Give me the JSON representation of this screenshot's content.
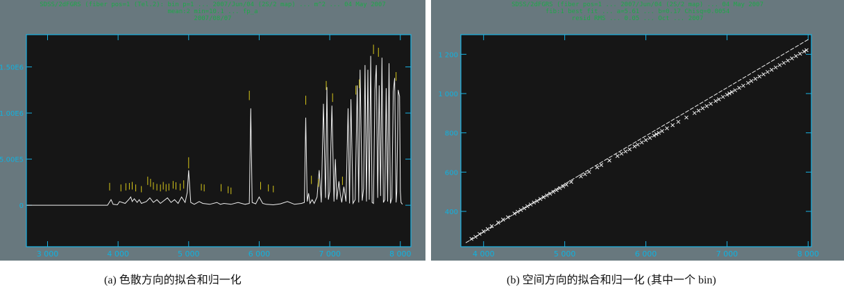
{
  "colors": {
    "frame_bg": "#68787e",
    "plot_bg": "#161616",
    "axis_cyan": "#19b4e6",
    "tick_label_cyan": "#0fb2e0",
    "header_green": "#1fa84a",
    "line_white": "#f2f2f2",
    "marker_yellow": "#d8c81a"
  },
  "panels": {
    "a": {
      "header": [
        "SDSS/2dFGRS (fiber pos=1 (Tel.2): bin p=1 ... 2007/Jun/04 (2S/2 map) ... m^2 ... 04 May 2007",
        "mean:2 min=10.1 ... fp_a",
        "2007/08/07"
      ],
      "caption": "(a) 色散方向的拟合和归一化"
    },
    "b": {
      "header": [
        "SDSS/2dFGRS (fiber pos=1 ... 2007/Jun/04 (2S/2 map) ... 04 May 2007",
        "fib:1 best fit ... a=5.61 ... b=0.17 Chisq=0.0054",
        "resid RMS ... 0.05 ... Oct ... 2007"
      ],
      "caption": "(b) 空间方向的拟合和归一化 (其中一个 bin)"
    }
  },
  "chart_data": [
    {
      "type": "line",
      "x": [
        2700,
        3850,
        3900,
        3930,
        3990,
        4020,
        4100,
        4150,
        4180,
        4200,
        4230,
        4270,
        4300,
        4330,
        4400,
        4450,
        4500,
        4550,
        4600,
        4650,
        4700,
        4750,
        4800,
        4850,
        4900,
        4950,
        4980,
        5000,
        5030,
        5080,
        5150,
        5200,
        5300,
        5400,
        5450,
        5500,
        5600,
        5700,
        5800,
        5860,
        5880,
        5900,
        5950,
        6000,
        6050,
        6100,
        6200,
        6300,
        6400,
        6500,
        6600,
        6640,
        6660,
        6680,
        6700,
        6720,
        6750,
        6780,
        6820,
        6850,
        6880,
        6910,
        6940,
        6960,
        6980,
        7000,
        7030,
        7060,
        7080,
        7100,
        7130,
        7150,
        7170,
        7200,
        7230,
        7260,
        7280,
        7300,
        7330,
        7360,
        7390,
        7410,
        7430,
        7460,
        7480,
        7500,
        7520,
        7540,
        7560,
        7580,
        7600,
        7620,
        7640,
        7660,
        7680,
        7700,
        7720,
        7740,
        7760,
        7780,
        7800,
        7820,
        7840,
        7860,
        7880,
        7900,
        7920,
        7940,
        7950,
        7970,
        7990,
        8000,
        8010,
        8030
      ],
      "values": [
        0,
        0,
        60000,
        10000,
        5000,
        40000,
        20000,
        60000,
        90000,
        40000,
        70000,
        30000,
        60000,
        20000,
        40000,
        80000,
        30000,
        60000,
        20000,
        50000,
        80000,
        30000,
        60000,
        20000,
        90000,
        30000,
        140000,
        380000,
        30000,
        10000,
        40000,
        20000,
        10000,
        30000,
        10000,
        20000,
        10000,
        30000,
        10000,
        20000,
        1050000,
        30000,
        15000,
        90000,
        20000,
        10000,
        5000,
        15000,
        40000,
        10000,
        20000,
        30000,
        950000,
        40000,
        130000,
        20000,
        60000,
        20000,
        90000,
        380000,
        30000,
        1100000,
        80000,
        1280000,
        60000,
        150000,
        1080000,
        40000,
        500000,
        60000,
        260000,
        120000,
        30000,
        200000,
        40000,
        1050000,
        20000,
        1150000,
        20000,
        60000,
        1300000,
        30000,
        1470000,
        50000,
        180000,
        1520000,
        40000,
        1470000,
        60000,
        1620000,
        30000,
        20000,
        1250000,
        1520000,
        80000,
        1300000,
        100000,
        1600000,
        30000,
        60000,
        1270000,
        40000,
        1540000,
        20000,
        80000,
        1230000,
        1380000,
        30000,
        150000,
        1250000,
        1180000,
        150000,
        30000,
        10000
      ],
      "markers_x": [
        3880,
        4040,
        4110,
        4160,
        4200,
        4250,
        4330,
        4420,
        4460,
        4500,
        4550,
        4600,
        4640,
        4680,
        4720,
        4780,
        4820,
        4880,
        4930,
        5000,
        5180,
        5220,
        5460,
        5560,
        5600,
        5860,
        6020,
        6130,
        6200,
        6660,
        6740,
        6840,
        6950,
        7040,
        7180,
        7370,
        7420,
        7620,
        7690,
        7940
      ],
      "markers_len": [
        1,
        0.8,
        0.9,
        0.7,
        1,
        0.8,
        0.6,
        1.2,
        1.1,
        0.9,
        0.7,
        0.8,
        1,
        0.9,
        0.8,
        1,
        0.9,
        0.8,
        1.2,
        2,
        0.7,
        0.8,
        0.9,
        0.8,
        0.7,
        1.5,
        1,
        0.8,
        0.7,
        1.4,
        1.2,
        1.1,
        1.4,
        1.3,
        1.2,
        1.4,
        1.3,
        1.5,
        1.4,
        1.3
      ],
      "marker_y": [
        160000,
        150000,
        160000,
        170000,
        170000,
        150000,
        140000,
        220000,
        200000,
        170000,
        160000,
        150000,
        170000,
        150000,
        160000,
        180000,
        170000,
        160000,
        180000,
        400000,
        160000,
        150000,
        150000,
        130000,
        120000,
        1140000,
        170000,
        150000,
        140000,
        1090000,
        230000,
        200000,
        1250000,
        1120000,
        220000,
        1200000,
        1270000,
        1640000,
        1610000,
        1350000
      ],
      "xlim": [
        2700,
        8150
      ],
      "ylim": [
        -450000,
        1850000
      ],
      "xticks": [
        3000,
        4000,
        5000,
        6000,
        7000,
        8000
      ],
      "xtick_labels": [
        "3 000",
        "4 000",
        "5 000",
        "6 000",
        "7 000",
        "8 000"
      ],
      "yticks": [
        0,
        500000,
        1000000,
        1500000
      ],
      "ytick_labels": [
        "0",
        "5.00E5",
        "1.00E6",
        "1.50E6"
      ],
      "title": "",
      "xlabel": "",
      "ylabel": "",
      "grid": false
    },
    {
      "type": "scatter",
      "x": [
        3850,
        3900,
        3950,
        4000,
        4050,
        4100,
        4180,
        4240,
        4300,
        4380,
        4420,
        4460,
        4500,
        4540,
        4580,
        4620,
        4660,
        4700,
        4740,
        4780,
        4820,
        4860,
        4900,
        4940,
        4980,
        5020,
        5080,
        5200,
        5250,
        5300,
        5400,
        5450,
        5550,
        5650,
        5700,
        5750,
        5800,
        5860,
        5900,
        5950,
        6000,
        6050,
        6100,
        6130,
        6160,
        6200,
        6260,
        6330,
        6400,
        6500,
        6600,
        6650,
        6700,
        6750,
        6800,
        6860,
        6900,
        6950,
        7000,
        7030,
        7060,
        7100,
        7150,
        7200,
        7260,
        7300,
        7350,
        7400,
        7450,
        7500,
        7550,
        7600,
        7650,
        7700,
        7750,
        7800,
        7850,
        7900,
        7950,
        7980
      ],
      "values": [
        260,
        270,
        285,
        298,
        310,
        325,
        343,
        358,
        370,
        389,
        398,
        407,
        416,
        426,
        435,
        445,
        453,
        463,
        472,
        481,
        490,
        499,
        508,
        518,
        527,
        536,
        550,
        578,
        589,
        601,
        624,
        636,
        659,
        682,
        694,
        705,
        716,
        731,
        740,
        751,
        763,
        774,
        786,
        793,
        800,
        809,
        823,
        839,
        856,
        878,
        901,
        913,
        925,
        936,
        948,
        962,
        971,
        983,
        994,
        1001,
        1008,
        1017,
        1029,
        1040,
        1054,
        1064,
        1075,
        1087,
        1098,
        1110,
        1121,
        1133,
        1145,
        1156,
        1168,
        1179,
        1191,
        1203,
        1214,
        1221
      ],
      "fit": {
        "x": [
          3780,
          8000
        ],
        "y": [
          240,
          1275
        ]
      },
      "xlim": [
        3720,
        8040
      ],
      "ylim": [
        220,
        1300
      ],
      "xticks": [
        4000,
        5000,
        6000,
        7000,
        8000
      ],
      "xtick_labels": [
        "4 000",
        "5 000",
        "6 000",
        "7 000",
        "8 000"
      ],
      "yticks": [
        400,
        600,
        800,
        1000,
        1200
      ],
      "ytick_labels": [
        "400",
        "600",
        "800",
        "1 000",
        "1 200"
      ],
      "title": "",
      "xlabel": "",
      "ylabel": "",
      "grid": false
    }
  ]
}
